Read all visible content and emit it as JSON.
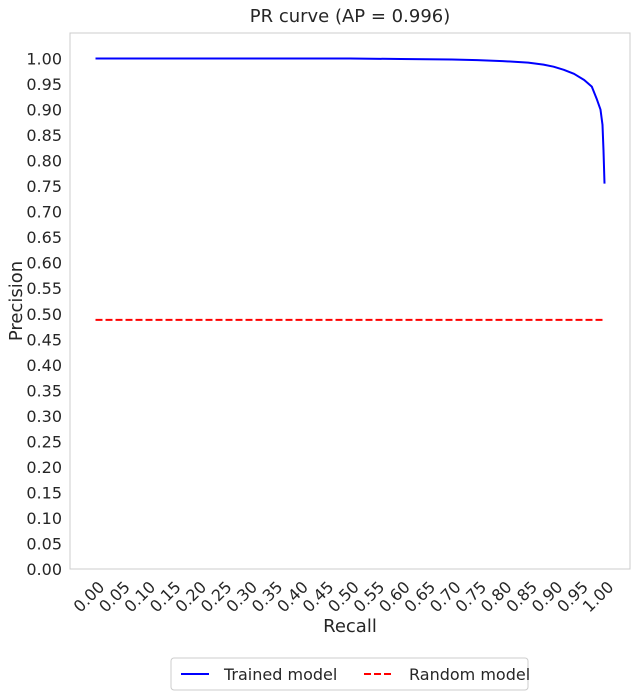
{
  "chart_data": {
    "type": "line",
    "title": "PR curve (AP = 0.996)",
    "xlabel": "Recall",
    "ylabel": "Precision",
    "xlim": [
      -0.05,
      1.05
    ],
    "ylim": [
      0.0,
      1.05
    ],
    "grid": false,
    "legend_position": "bottom-center, below axes",
    "xticks": [
      0.0,
      0.05,
      0.1,
      0.15,
      0.2,
      0.25,
      0.3,
      0.35,
      0.4,
      0.45,
      0.5,
      0.55,
      0.6,
      0.65,
      0.7,
      0.75,
      0.8,
      0.85,
      0.9,
      0.95,
      1.0
    ],
    "xtick_labels": [
      "0.00",
      "0.05",
      "0.10",
      "0.15",
      "0.20",
      "0.25",
      "0.30",
      "0.35",
      "0.40",
      "0.45",
      "0.50",
      "0.55",
      "0.60",
      "0.65",
      "0.70",
      "0.75",
      "0.80",
      "0.85",
      "0.90",
      "0.95",
      "1.00"
    ],
    "yticks": [
      0.0,
      0.05,
      0.1,
      0.15,
      0.2,
      0.25,
      0.3,
      0.35,
      0.4,
      0.45,
      0.5,
      0.55,
      0.6,
      0.65,
      0.7,
      0.75,
      0.8,
      0.85,
      0.9,
      0.95,
      1.0
    ],
    "ytick_labels": [
      "0.00",
      "0.05",
      "0.10",
      "0.15",
      "0.20",
      "0.25",
      "0.30",
      "0.35",
      "0.40",
      "0.45",
      "0.50",
      "0.55",
      "0.60",
      "0.65",
      "0.70",
      "0.75",
      "0.80",
      "0.85",
      "0.90",
      "0.95",
      "1.00"
    ],
    "series": [
      {
        "name": "Trained model",
        "color": "#0000ff",
        "style": "solid",
        "points": [
          [
            0.0,
            1.0
          ],
          [
            0.1,
            1.0
          ],
          [
            0.2,
            1.0
          ],
          [
            0.3,
            1.0
          ],
          [
            0.4,
            1.0
          ],
          [
            0.5,
            1.0
          ],
          [
            0.6,
            0.999
          ],
          [
            0.7,
            0.998
          ],
          [
            0.75,
            0.997
          ],
          [
            0.8,
            0.995
          ],
          [
            0.85,
            0.992
          ],
          [
            0.88,
            0.988
          ],
          [
            0.9,
            0.984
          ],
          [
            0.92,
            0.978
          ],
          [
            0.94,
            0.97
          ],
          [
            0.96,
            0.958
          ],
          [
            0.975,
            0.945
          ],
          [
            0.985,
            0.92
          ],
          [
            0.992,
            0.9
          ],
          [
            0.996,
            0.87
          ],
          [
            0.998,
            0.82
          ],
          [
            1.0,
            0.755
          ]
        ]
      },
      {
        "name": "Random model",
        "color": "#ff0000",
        "style": "dashed",
        "points": [
          [
            0.0,
            0.488
          ],
          [
            1.0,
            0.488
          ]
        ]
      }
    ]
  }
}
